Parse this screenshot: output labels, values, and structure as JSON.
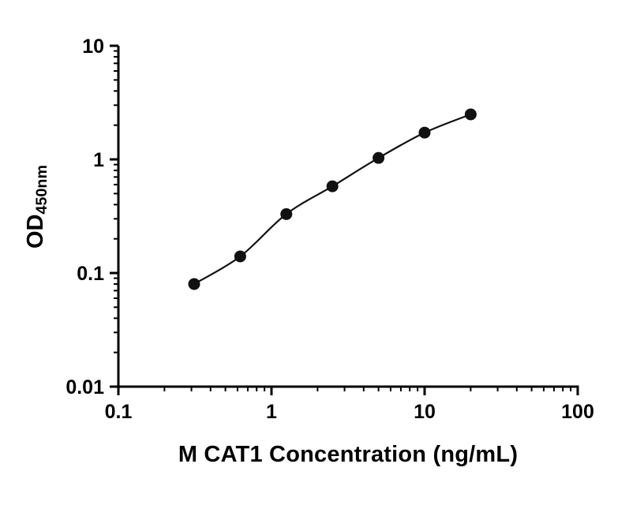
{
  "chart_data": {
    "type": "scatter",
    "title": "",
    "xlabel": "M CAT1 Concentration (ng/mL)",
    "ylabel": "OD450nm",
    "ylabel_base": "OD",
    "ylabel_sub": "450nm",
    "x_scale": "log",
    "y_scale": "log",
    "xlim": [
      0.1,
      100
    ],
    "ylim": [
      0.01,
      10
    ],
    "x_ticks": [
      0.1,
      1,
      10,
      100
    ],
    "x_tick_labels": [
      "0.1",
      "1",
      "10",
      "100"
    ],
    "y_ticks": [
      0.01,
      0.1,
      1,
      10
    ],
    "y_tick_labels": [
      "0.01",
      "0.1",
      "1",
      "10"
    ],
    "grid": false,
    "legend": "none",
    "points": [
      {
        "x": 0.3125,
        "y": 0.08
      },
      {
        "x": 0.625,
        "y": 0.14
      },
      {
        "x": 1.25,
        "y": 0.33
      },
      {
        "x": 2.5,
        "y": 0.58
      },
      {
        "x": 5,
        "y": 1.03
      },
      {
        "x": 10,
        "y": 1.72
      },
      {
        "x": 20,
        "y": 2.49
      }
    ],
    "marker_color": "#111111",
    "line_color": "#111111",
    "axis_color": "#000000"
  }
}
